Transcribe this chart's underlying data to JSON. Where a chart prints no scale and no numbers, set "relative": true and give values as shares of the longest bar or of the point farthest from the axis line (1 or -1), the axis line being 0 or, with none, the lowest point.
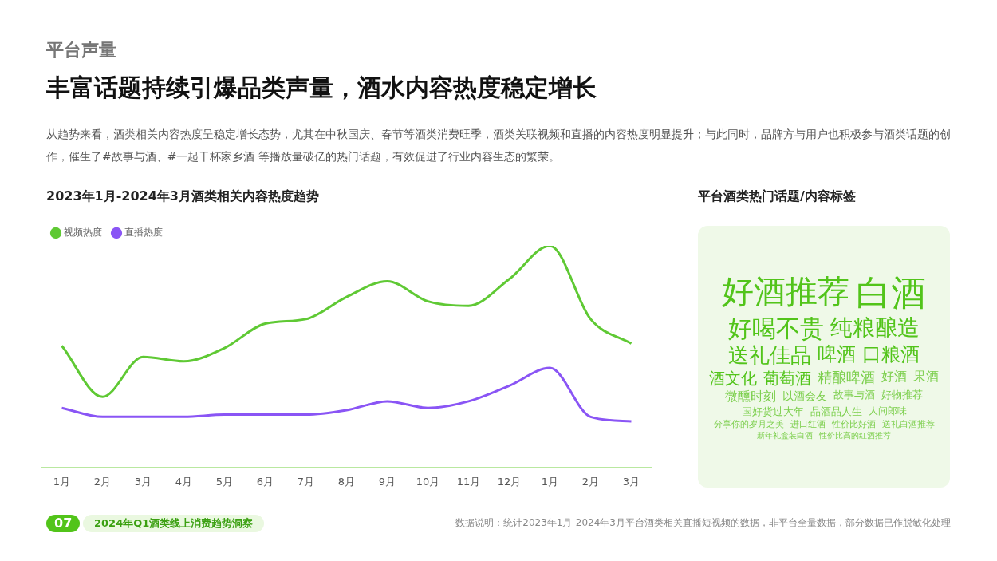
{
  "chart_data": [
    {
      "type": "line",
      "title": "2023年1月-2024年3月酒类相关内容热度趋势",
      "relative": true,
      "legend": "top left",
      "grid": false,
      "marker": "none",
      "line_style": "solid",
      "tick_labels": "x",
      "categories": [
        "1月",
        "2月",
        "3月",
        "4月",
        "5月",
        "6月",
        "7月",
        "8月",
        "9月",
        "10月",
        "11月",
        "12月",
        "1月",
        "2月",
        "3月"
      ],
      "series": [
        {
          "name": "视频热度",
          "color": "#5fc934",
          "values": [
            0.55,
            0.32,
            0.5,
            0.48,
            0.54,
            0.65,
            0.67,
            0.77,
            0.84,
            0.75,
            0.73,
            0.85,
            1,
            0.67,
            0.56
          ]
        },
        {
          "name": "直播热度",
          "color": "#8a55f5",
          "values": [
            0.27,
            0.23,
            0.23,
            0.23,
            0.24,
            0.24,
            0.24,
            0.26,
            0.3,
            0.27,
            0.3,
            0.37,
            0.45,
            0.23,
            0.21
          ]
        }
      ],
      "annotations": [
        "平台声量",
        "丰富话题持续引爆品类声量，酒水内容热度稳定增长",
        "从趋势来看，酒类相关内容热度呈稳定增长态势，尤其在中秋国庆、春节等酒类消费旺季，酒类关联视频和直播的内容热度明显提升；与此同时，品牌方与用户也积极参与酒类话题的创作，催生了#故事与酒、#一起干杯家乡酒 等播放量破亿的热门话题，有效促进了行业内容生态的繁荣。",
        "07",
        "2024年Q1酒类线上消费趋势洞察",
        "数据说明：统计2023年1月-2024年3月平台酒类相关直播短视频的数据，非平台全量数据，部分数据已作脱敏化处理"
      ]
    },
    {
      "type": "other",
      "title": "平台酒类热门话题/内容标签",
      "annotations": [
        "好酒推荐",
        "白酒",
        "好喝不贵",
        "纯粮酿造",
        "送礼佳品",
        "啤酒",
        "口粮酒",
        "酒文化",
        "葡萄酒",
        "精酿啤酒",
        "好酒",
        "果酒",
        "微醺时刻",
        "以酒会友",
        "故事与酒",
        "好物推荐",
        "国好货过大年",
        "品酒品人生",
        "人间郎味",
        "分享你的岁月之美",
        "进口红酒",
        "性价比好酒",
        "送礼白酒推荐",
        "新年礼盒装白酒",
        "性价比高的红酒推荐"
      ]
    }
  ]
}
